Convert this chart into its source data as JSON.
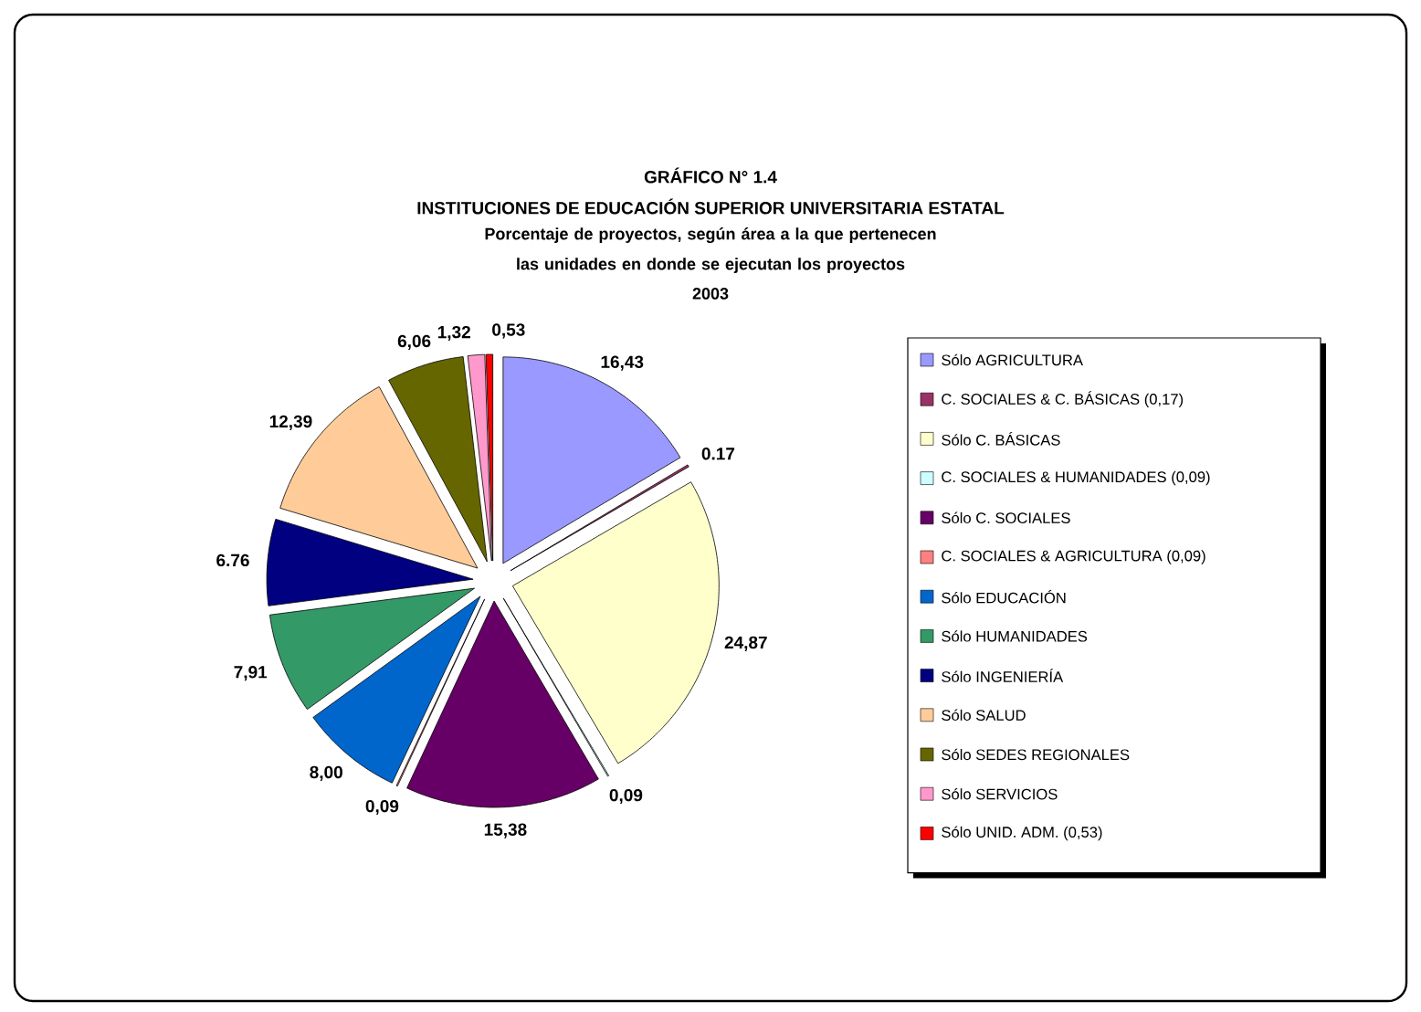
{
  "chart_data": {
    "type": "pie",
    "title": "GRÁFICO N° 1.4",
    "subtitle": "INSTITUCIONES DE EDUCACIÓN SUPERIOR UNIVERSITARIA ESTATAL",
    "annotations": [
      "Porcentaje de proyectos, según área a la que pertenecen las unidades en donde se ejecutan los proyectos",
      "2003"
    ],
    "categories": [
      "Sólo AGRICULTURA",
      "C. SOCIALES & C. BÁSICAS (0,17)",
      "Sólo C. BÁSICAS",
      "C. SOCIALES & HUMANIDADES (0,09)",
      "Sólo C. SOCIALES",
      "C. SOCIALES & AGRICULTURA (0,09)",
      "Sólo EDUCACIÓN",
      "Sólo HUMANIDADES",
      "Sólo INGENIERÍA",
      "Sólo SALUD",
      "Sólo SEDES REGIONALES",
      "Sólo SERVICIOS",
      "Sólo UNID. ADM. (0,53)"
    ],
    "values": [
      16.43,
      0.17,
      24.87,
      0.09,
      15.38,
      0.09,
      8.0,
      7.91,
      6.76,
      12.39,
      6.06,
      1.32,
      0.53
    ],
    "value_labels": [
      "16,43",
      "0.17",
      "24,87",
      "0,09",
      "15,38",
      "0,09",
      "8,00",
      "7,91",
      "6.76",
      "12,39",
      "6,06",
      "1,32",
      "0,53"
    ],
    "colors": [
      "#9999ff",
      "#993366",
      "#ffffcc",
      "#ccffff",
      "#660066",
      "#ff8080",
      "#0066cc",
      "#339966",
      "#000080",
      "#ffcc99",
      "#666600",
      "#ff99cc",
      "#ff0000"
    ],
    "legend": "right"
  }
}
